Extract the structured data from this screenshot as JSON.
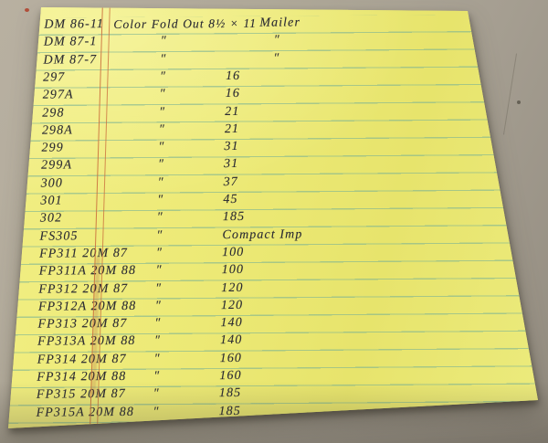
{
  "ditto_mark": "″",
  "colors": {
    "paper": "#ebe873",
    "rule": "rgba(122,178,148,.6)",
    "margin": "rgba(203,112,62,.9)",
    "ink": "#2c2c33",
    "desk": "#aea795"
  },
  "rows": [
    {
      "c1": "DM 86-11",
      "c2": "Color Fold Out 8½ × 11",
      "c3": "Mailer"
    },
    {
      "c1": "DM 87-1",
      "c2": "″",
      "c3": "″"
    },
    {
      "c1": "DM 87-7",
      "c2": "″",
      "c3": "″"
    },
    {
      "c1": "297",
      "c2": "″",
      "c3": "16"
    },
    {
      "c1": "297A",
      "c2": "″",
      "c3": "16"
    },
    {
      "c1": "298",
      "c2": "″",
      "c3": "21"
    },
    {
      "c1": "298A",
      "c2": "″",
      "c3": "21"
    },
    {
      "c1": "299",
      "c2": "″",
      "c3": "31"
    },
    {
      "c1": "299A",
      "c2": "″",
      "c3": "31"
    },
    {
      "c1": "300",
      "c2": "″",
      "c3": "37"
    },
    {
      "c1": "301",
      "c2": "″",
      "c3": "45"
    },
    {
      "c1": "302",
      "c2": "″",
      "c3": "185"
    },
    {
      "c1": "FS305",
      "c2": "″",
      "c3": "Compact Imp"
    },
    {
      "c1": "FP311 20M 87",
      "c2": "″",
      "c3": "100"
    },
    {
      "c1": "FP311A 20M 88",
      "c2": "″",
      "c3": "100"
    },
    {
      "c1": "FP312 20M 87",
      "c2": "″",
      "c3": "120"
    },
    {
      "c1": "FP312A 20M 88",
      "c2": "″",
      "c3": "120"
    },
    {
      "c1": "FP313 20M 87",
      "c2": "″",
      "c3": "140"
    },
    {
      "c1": "FP313A 20M 88",
      "c2": "″",
      "c3": "140"
    },
    {
      "c1": "FP314 20M 87",
      "c2": "″",
      "c3": "160"
    },
    {
      "c1": "FP314 20M 88",
      "c2": "″",
      "c3": "160"
    },
    {
      "c1": "FP315 20M 87",
      "c2": "″",
      "c3": "185"
    },
    {
      "c1": "FP315A 20M 88",
      "c2": "″",
      "c3": "185"
    }
  ]
}
